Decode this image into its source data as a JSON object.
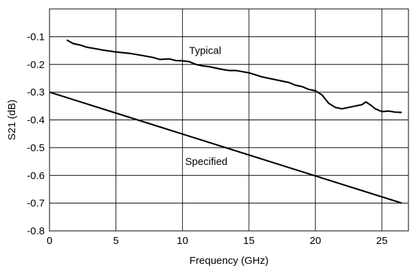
{
  "chart_data": {
    "type": "line",
    "title": "",
    "xlabel": "Frequency (GHz)",
    "ylabel": "S21 (dB)",
    "xlim": [
      0,
      27
    ],
    "ylim": [
      -0.8,
      0
    ],
    "xticks": [
      0,
      5,
      10,
      15,
      20,
      25
    ],
    "xtick_labels": [
      "0",
      "5",
      "10",
      "15",
      "20",
      "25"
    ],
    "yticks": [
      -0.1,
      -0.2,
      -0.3,
      -0.4,
      -0.5,
      -0.6,
      -0.7,
      -0.8
    ],
    "ytick_labels": [
      "-0.1",
      "-0.2",
      "-0.3",
      "-0.4",
      "-0.5",
      "-0.6",
      "-0.7",
      "-0.8"
    ],
    "grid": true,
    "series": [
      {
        "name": "Typical",
        "x": [
          1.3,
          1.8,
          2.3,
          2.8,
          3.3,
          4,
          5,
          6,
          7,
          7.8,
          8.3,
          9,
          9.5,
          10,
          10.5,
          11,
          11.5,
          12,
          13,
          13.5,
          14,
          15,
          16,
          17,
          18,
          18.5,
          19,
          19.5,
          20,
          20.5,
          21,
          21.5,
          22,
          22.5,
          23,
          23.5,
          23.8,
          24.2,
          24.5,
          25,
          25.5,
          26,
          26.5
        ],
        "y": [
          -0.112,
          -0.125,
          -0.13,
          -0.138,
          -0.142,
          -0.148,
          -0.155,
          -0.16,
          -0.168,
          -0.175,
          -0.182,
          -0.18,
          -0.186,
          -0.187,
          -0.19,
          -0.2,
          -0.205,
          -0.208,
          -0.218,
          -0.222,
          -0.222,
          -0.23,
          -0.245,
          -0.255,
          -0.265,
          -0.275,
          -0.28,
          -0.29,
          -0.295,
          -0.31,
          -0.34,
          -0.355,
          -0.36,
          -0.355,
          -0.35,
          -0.345,
          -0.335,
          -0.348,
          -0.36,
          -0.37,
          -0.368,
          -0.372,
          -0.373
        ]
      },
      {
        "name": "Specified",
        "x": [
          0,
          26.5
        ],
        "y": [
          -0.3,
          -0.7
        ]
      }
    ],
    "annotations": [
      {
        "text": "Typical",
        "x": 10.5,
        "y": -0.15
      },
      {
        "text": "Specified",
        "x": 10.2,
        "y": -0.55
      }
    ]
  }
}
